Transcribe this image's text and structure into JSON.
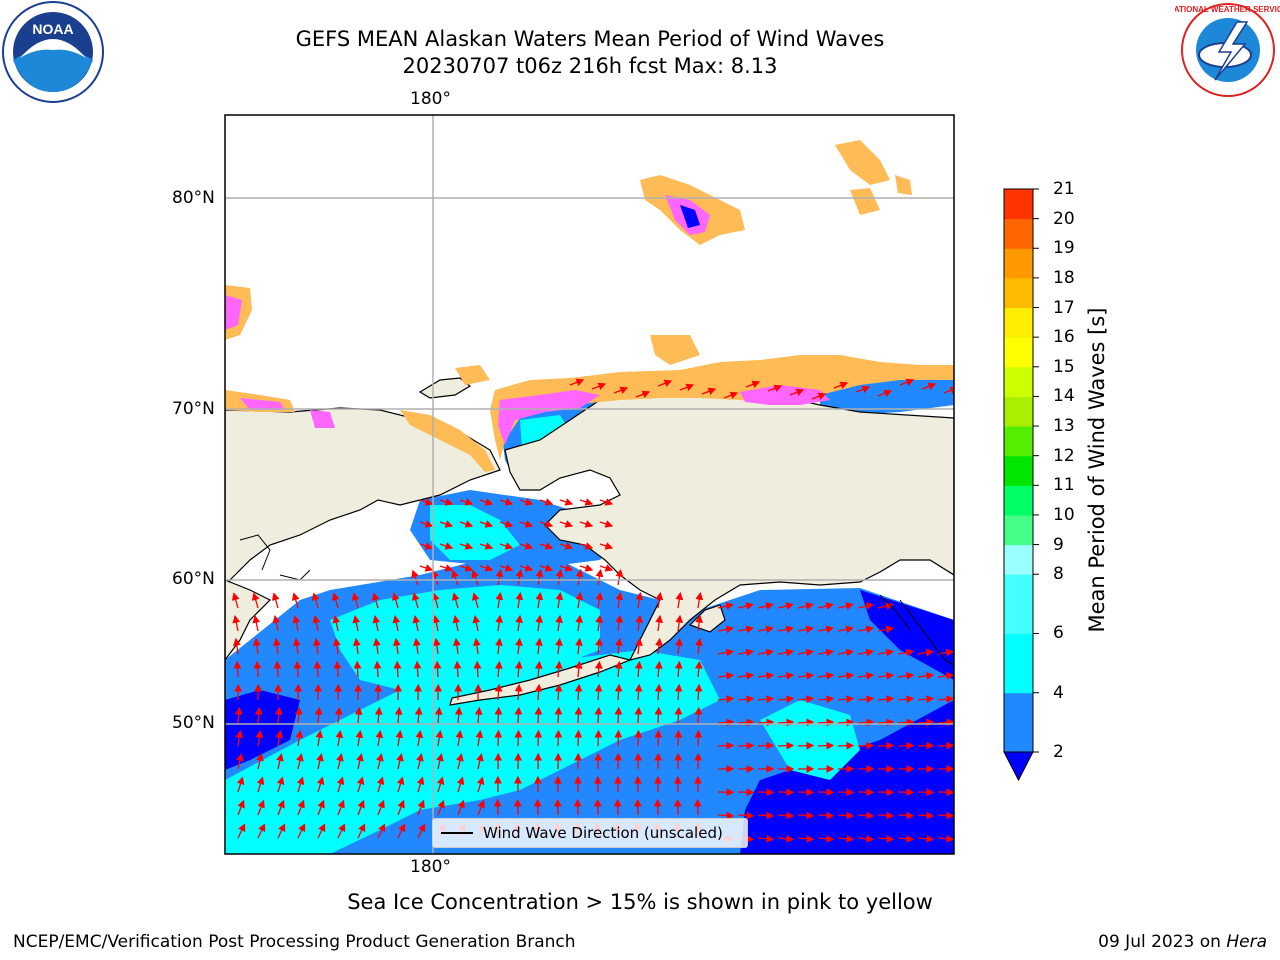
{
  "title": {
    "line1": "GEFS MEAN Alaskan Waters Mean Period of Wind Waves",
    "line2": "20230707 t06z 216h fcst   Max: 8.13"
  },
  "axes": {
    "lon_tick_top": "180°",
    "lon_tick_bottom": "180°",
    "lat_ticks": [
      "80°N",
      "70°N",
      "60°N",
      "50°N"
    ]
  },
  "legend": {
    "label": "Wind Wave Direction (unscaled)"
  },
  "colorbar": {
    "label": "Mean Period of Wind Waves [s]",
    "ticks": [
      "21",
      "20",
      "19",
      "18",
      "17",
      "16",
      "15",
      "14",
      "13",
      "12",
      "11",
      "10",
      "9",
      "8",
      "6",
      "4",
      "2"
    ],
    "levels": [
      2,
      4,
      6,
      8,
      9,
      10,
      11,
      12,
      13,
      14,
      15,
      16,
      17,
      18,
      19,
      20,
      21
    ],
    "colors": [
      "#2288ff",
      "#00ffff",
      "#44ffff",
      "#99ffff",
      "#44ff88",
      "#00ff66",
      "#00e600",
      "#55ee00",
      "#aaee00",
      "#ccff00",
      "#ffff00",
      "#ffee00",
      "#ffbb00",
      "#ff9900",
      "#ff6600",
      "#ff3300"
    ],
    "under_color": "#0000ff"
  },
  "note": "Sea Ice Concentration > 15% is shown in pink to yellow",
  "footer": {
    "left": "NCEP/EMC/Verification Post Processing Product Generation Branch",
    "right_date": "09 Jul 2023 on",
    "right_host": "Hera"
  },
  "logos": {
    "noaa_text": "NOAA",
    "nws_text": "NATIONAL WEATHER SERVICE"
  },
  "colors": {
    "land": "#efedde",
    "ocean_dark": "#0000ff",
    "ocean_mid": "#2288ff",
    "ocean_light": "#00ffff",
    "arrows": "#ff0000",
    "ice_pink": "#ff66ff",
    "ice_orange": "#ffbb55"
  }
}
